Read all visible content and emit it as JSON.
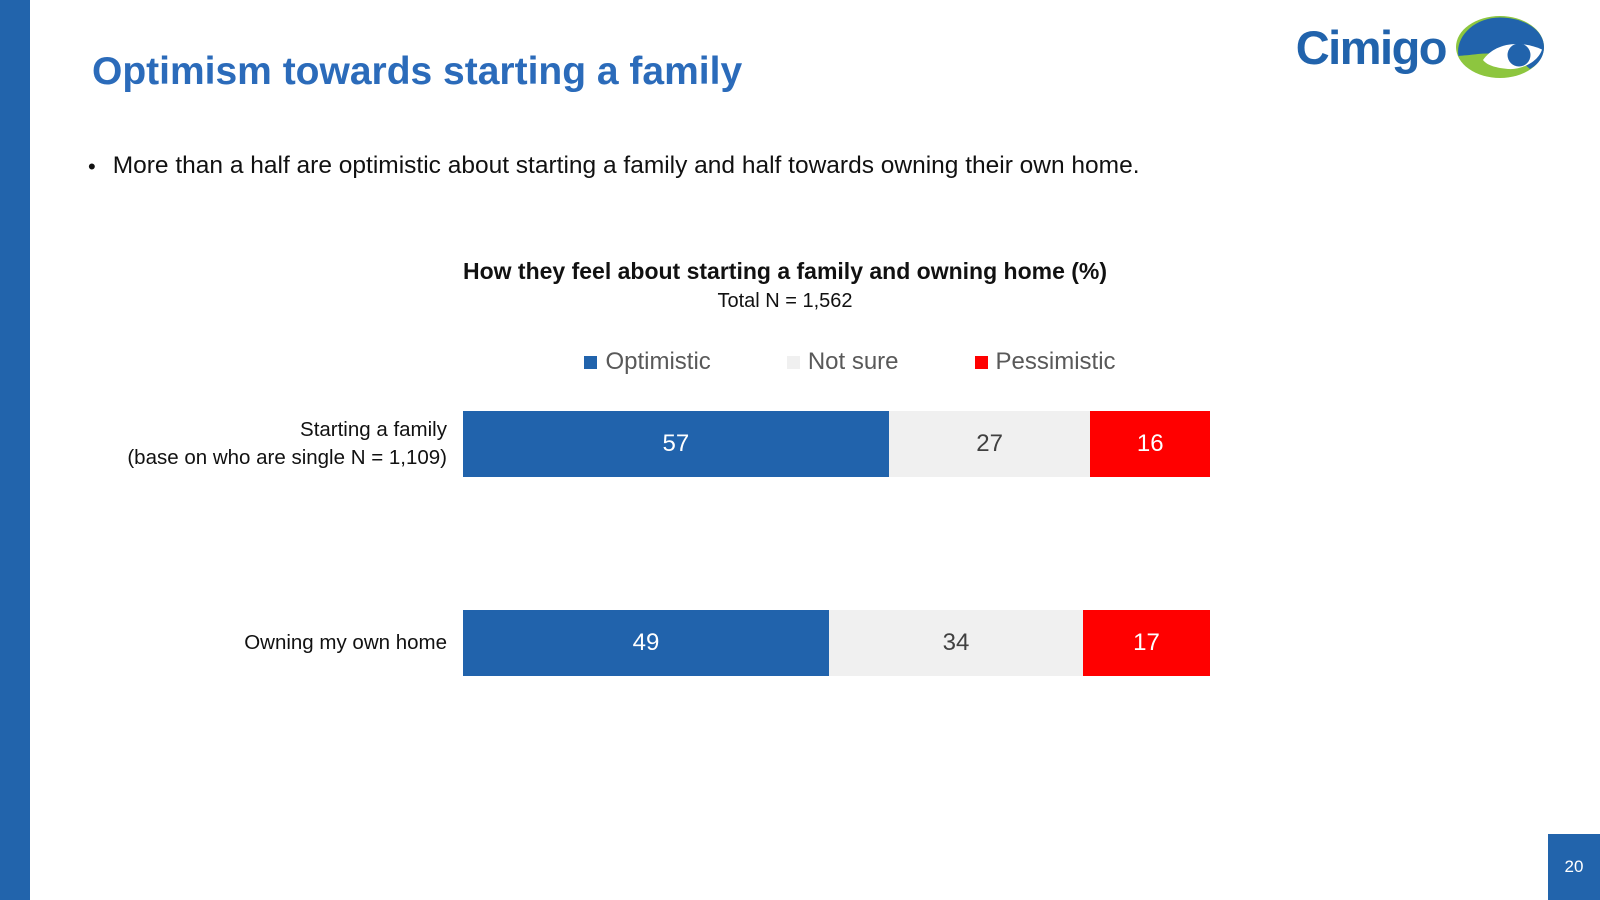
{
  "slide": {
    "title": "Optimism towards starting a family",
    "bullet_marker": "•",
    "bullet": "More than a half are optimistic about starting a family and half towards owning their own home.",
    "logo_text": "Cimigo",
    "page_number": "20"
  },
  "colors": {
    "accent_blue": "#2264AC",
    "title_blue": "#2B6BBA",
    "optimistic_blue": "#2163AC",
    "not_sure_gray": "#F0F0F0",
    "pessimistic_red": "#FF0000",
    "legend_text_gray": "#595959",
    "logo_green": "#8DC63F"
  },
  "chart_data": {
    "type": "bar",
    "orientation": "horizontal_stacked",
    "title": "How they feel about starting a family and owning home (%)",
    "subtitle": "Total N = 1,562",
    "categories": [
      {
        "lines": [
          "Starting a family",
          "(base on who are single N = 1,109)"
        ]
      },
      {
        "lines": [
          "Owning my own home"
        ]
      }
    ],
    "series": [
      {
        "name": "Optimistic",
        "color": "#2163AC",
        "text_color": "#FFFFFF",
        "values": [
          57,
          49
        ]
      },
      {
        "name": "Not sure",
        "color": "#F0F0F0",
        "text_color": "#404040",
        "values": [
          27,
          34
        ]
      },
      {
        "name": "Pessimistic",
        "color": "#FF0000",
        "text_color": "#FFFFFF",
        "values": [
          16,
          17
        ]
      }
    ],
    "xlim": [
      0,
      100
    ],
    "legend_position": "top",
    "value_labels": "inside",
    "grid": false
  }
}
